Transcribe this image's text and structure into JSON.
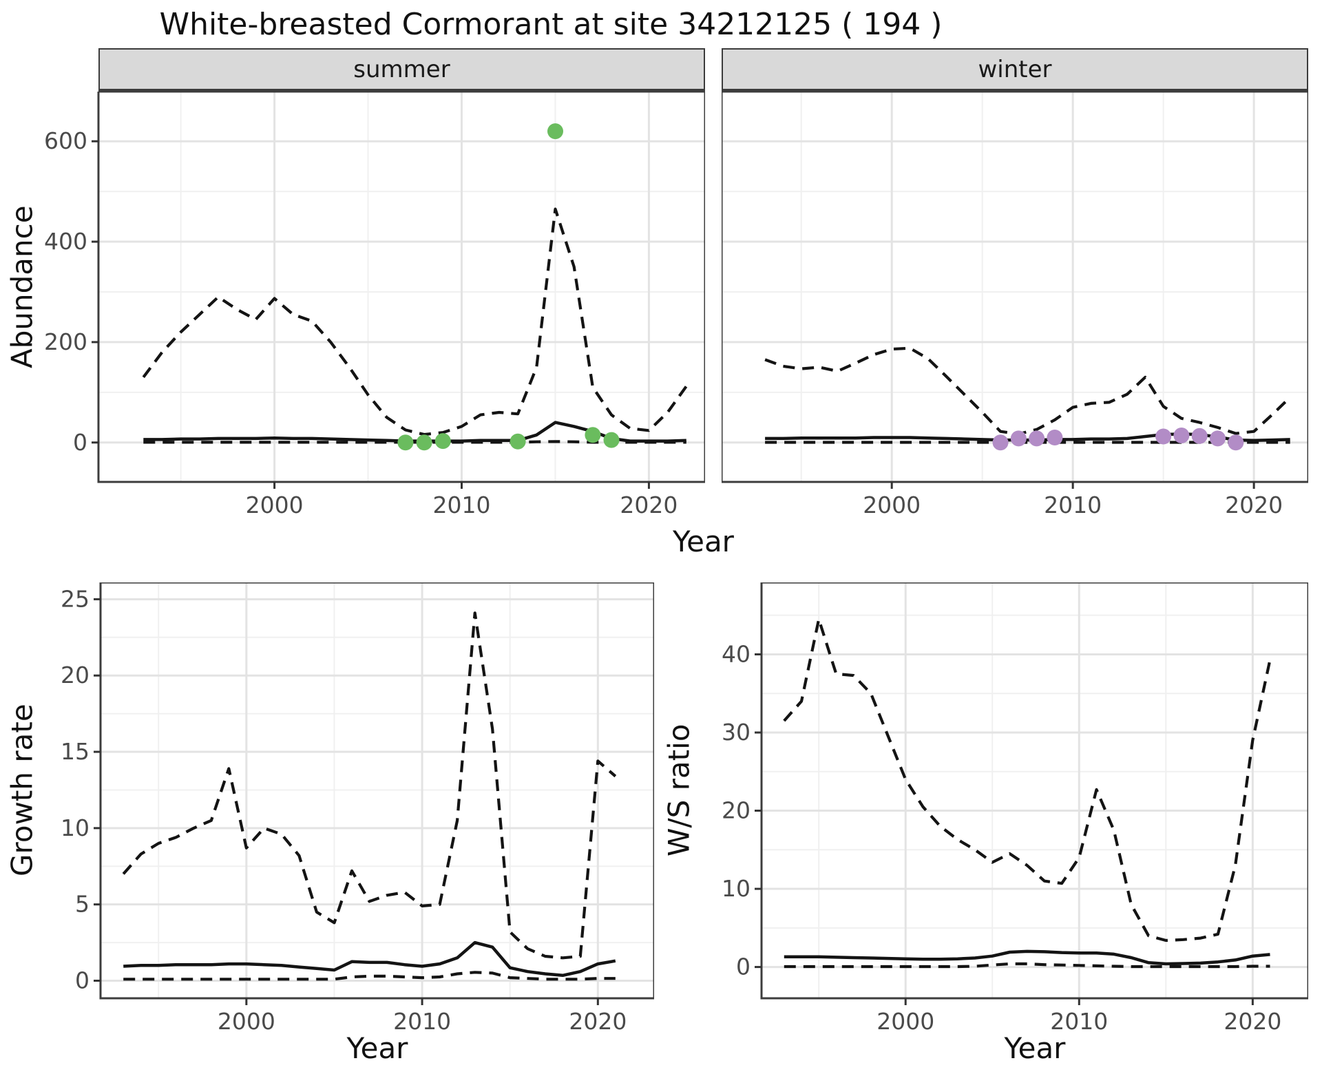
{
  "title": "White-breasted Cormorant at site 34212125 ( 194 )",
  "colors": {
    "line": "#141414",
    "grid_major": "#e3e3e3",
    "grid_minor": "#f0f0f0",
    "panel_border": "#3c3c3c",
    "panel_bg": "#ffffff",
    "strip_bg": "#d9d9d9",
    "tick_text": "#4a4a4a",
    "tick_mark": "#333333",
    "text": "#111111",
    "summer_points": "#6abc5e",
    "winter_points": "#b28cc6"
  },
  "chart_data": [
    {
      "id": "abundance-summer",
      "type": "line",
      "facet_label": "summer",
      "ylabel": "Abundance",
      "xlabel": "Year",
      "xlim": [
        1990.6,
        2023.0
      ],
      "ylim": [
        -78.5,
        699
      ],
      "x_ticks": [
        2000,
        2010,
        2020
      ],
      "x_minor": [
        1995,
        2005,
        2015
      ],
      "y_ticks": [
        0,
        200,
        400,
        600
      ],
      "y_minor": [
        100,
        300,
        500
      ],
      "y_labels": true,
      "years": [
        1993,
        1994,
        1995,
        1996,
        1997,
        1998,
        1999,
        2000,
        2001,
        2002,
        2003,
        2004,
        2005,
        2006,
        2007,
        2008,
        2009,
        2010,
        2011,
        2012,
        2013,
        2014,
        2015,
        2016,
        2017,
        2018,
        2019,
        2020,
        2021,
        2022
      ],
      "series": [
        {
          "name": "upper-ci",
          "style": "dashed",
          "values": [
            130,
            180,
            220,
            255,
            290,
            265,
            245,
            287,
            255,
            242,
            200,
            150,
            95,
            50,
            25,
            16,
            20,
            32,
            55,
            60,
            57,
            150,
            465,
            350,
            110,
            55,
            28,
            24,
            60,
            112
          ]
        },
        {
          "name": "median",
          "style": "solid",
          "values": [
            6,
            6,
            7,
            7,
            8,
            8,
            8,
            9,
            8,
            8,
            7,
            6,
            5,
            4,
            3,
            3,
            3,
            3,
            4,
            4,
            4,
            15,
            40,
            32,
            22,
            8,
            3,
            3,
            3,
            4
          ]
        },
        {
          "name": "lower-ci",
          "style": "dashed",
          "values": [
            0.5,
            0.5,
            0.5,
            0.5,
            0.5,
            0.5,
            0.5,
            0.5,
            0.5,
            0.5,
            0.5,
            0.5,
            0.5,
            0.5,
            0.5,
            0.5,
            0.5,
            0.5,
            0.5,
            0.5,
            0.5,
            1.5,
            2,
            1.5,
            0.5,
            0.5,
            0.5,
            0.5,
            0.5,
            0.5
          ]
        }
      ],
      "points": {
        "name": "observed-counts-summer",
        "color": "#6abc5e",
        "x": [
          2007,
          2008,
          2009,
          2013,
          2015,
          2017,
          2018
        ],
        "y": [
          0,
          0,
          3,
          2,
          620,
          15,
          5
        ]
      }
    },
    {
      "id": "abundance-winter",
      "type": "line",
      "facet_label": "winter",
      "ylabel": null,
      "xlabel": "Year",
      "xlim": [
        1990.6,
        2023.0
      ],
      "ylim": [
        -78.5,
        699
      ],
      "x_ticks": [
        2000,
        2010,
        2020
      ],
      "x_minor": [
        1995,
        2005,
        2015
      ],
      "y_ticks": [
        0,
        200,
        400,
        600
      ],
      "y_minor": [
        100,
        300,
        500
      ],
      "y_labels": false,
      "years": [
        1993,
        1994,
        1995,
        1996,
        1997,
        1998,
        1999,
        2000,
        2001,
        2002,
        2003,
        2004,
        2005,
        2006,
        2007,
        2008,
        2009,
        2010,
        2011,
        2012,
        2013,
        2014,
        2015,
        2016,
        2017,
        2018,
        2019,
        2020,
        2021,
        2022
      ],
      "series": [
        {
          "name": "upper-ci",
          "style": "dashed",
          "values": [
            165,
            152,
            147,
            150,
            142,
            158,
            175,
            186,
            188,
            167,
            132,
            96,
            60,
            22,
            17,
            26,
            45,
            70,
            78,
            80,
            96,
            130,
            72,
            48,
            40,
            30,
            18,
            22,
            55,
            90
          ]
        },
        {
          "name": "median",
          "style": "solid",
          "values": [
            8,
            8,
            9,
            9,
            9,
            9,
            10,
            10,
            10,
            9,
            8,
            7,
            6,
            5,
            5,
            5,
            6,
            6,
            7,
            7,
            8,
            12,
            16,
            17,
            16,
            11,
            5,
            4,
            5,
            6
          ]
        },
        {
          "name": "lower-ci",
          "style": "dashed",
          "values": [
            0.3,
            0.3,
            0.3,
            0.3,
            0.3,
            0.3,
            0.3,
            0.3,
            0.3,
            0.3,
            0.3,
            0.3,
            0.3,
            0.3,
            0.3,
            0.3,
            0.3,
            0.3,
            0.3,
            0.3,
            0.3,
            0.3,
            0.3,
            0.3,
            0.3,
            0.3,
            0.3,
            0.3,
            0.3,
            0.3
          ]
        }
      ],
      "points": {
        "name": "observed-counts-winter",
        "color": "#b28cc6",
        "x": [
          2006,
          2007,
          2008,
          2009,
          2015,
          2016,
          2017,
          2018,
          2019
        ],
        "y": [
          0,
          8,
          8,
          10,
          12,
          14,
          13,
          8,
          0
        ]
      }
    },
    {
      "id": "growth",
      "type": "line",
      "facet_label": null,
      "ylabel": "Growth rate",
      "xlabel": "Year",
      "xlim": [
        1991.7,
        2023.2
      ],
      "ylim": [
        -1.15,
        26.1
      ],
      "x_ticks": [
        2000,
        2010,
        2020
      ],
      "x_minor": [
        1995,
        2005,
        2015
      ],
      "y_ticks": [
        0,
        5,
        10,
        15,
        20,
        25
      ],
      "y_minor": [
        2.5,
        7.5,
        12.5,
        17.5,
        22.5
      ],
      "y_labels": true,
      "years": [
        1993,
        1994,
        1995,
        1996,
        1997,
        1998,
        1999,
        2000,
        2001,
        2002,
        2003,
        2004,
        2005,
        2006,
        2007,
        2008,
        2009,
        2010,
        2011,
        2012,
        2013,
        2014,
        2015,
        2016,
        2017,
        2018,
        2019,
        2020,
        2021
      ],
      "series": [
        {
          "name": "upper-ci",
          "style": "dashed",
          "values": [
            7.0,
            8.3,
            9.0,
            9.4,
            10.0,
            10.5,
            13.9,
            8.7,
            10.0,
            9.6,
            8.2,
            4.5,
            3.8,
            7.2,
            5.2,
            5.6,
            5.8,
            4.9,
            5.0,
            10.5,
            24.1,
            16.5,
            3.2,
            2.1,
            1.6,
            1.5,
            1.6,
            14.4,
            13.4
          ]
        },
        {
          "name": "median",
          "style": "solid",
          "values": [
            0.95,
            1.0,
            1.0,
            1.05,
            1.05,
            1.05,
            1.1,
            1.1,
            1.05,
            1.0,
            0.9,
            0.8,
            0.7,
            1.25,
            1.2,
            1.2,
            1.05,
            0.95,
            1.1,
            1.5,
            2.5,
            2.2,
            0.85,
            0.6,
            0.45,
            0.35,
            0.6,
            1.1,
            1.3
          ]
        },
        {
          "name": "lower-ci",
          "style": "dashed",
          "values": [
            0.1,
            0.1,
            0.1,
            0.1,
            0.1,
            0.1,
            0.1,
            0.1,
            0.1,
            0.1,
            0.1,
            0.1,
            0.1,
            0.25,
            0.3,
            0.3,
            0.25,
            0.2,
            0.25,
            0.45,
            0.55,
            0.5,
            0.2,
            0.15,
            0.1,
            0.1,
            0.1,
            0.15,
            0.15
          ]
        }
      ],
      "points": null
    },
    {
      "id": "ws",
      "type": "line",
      "facet_label": null,
      "ylabel": "W/S ratio",
      "xlabel": "Year",
      "xlim": [
        1991.7,
        2023.2
      ],
      "ylim": [
        -4.0,
        49.2
      ],
      "x_ticks": [
        2000,
        2010,
        2020
      ],
      "x_minor": [
        1995,
        2005,
        2015
      ],
      "y_ticks": [
        0,
        10,
        20,
        30,
        40
      ],
      "y_minor": [
        5,
        15,
        25,
        35,
        45
      ],
      "y_labels": true,
      "years": [
        1993,
        1994,
        1995,
        1996,
        1997,
        1998,
        1999,
        2000,
        2001,
        2002,
        2003,
        2004,
        2005,
        2006,
        2007,
        2008,
        2009,
        2010,
        2011,
        2012,
        2013,
        2014,
        2015,
        2016,
        2017,
        2018,
        2019,
        2020,
        2021
      ],
      "series": [
        {
          "name": "upper-ci",
          "style": "dashed",
          "values": [
            31.5,
            34.0,
            44.5,
            37.5,
            37.3,
            35.0,
            29.5,
            24.0,
            20.5,
            18.0,
            16.3,
            15.0,
            13.4,
            14.5,
            13.0,
            11.0,
            10.7,
            14.0,
            22.7,
            17.5,
            8.0,
            4.0,
            3.4,
            3.5,
            3.7,
            4.2,
            13.0,
            29.0,
            39.3
          ]
        },
        {
          "name": "median",
          "style": "solid",
          "values": [
            1.3,
            1.3,
            1.3,
            1.25,
            1.2,
            1.15,
            1.1,
            1.05,
            1.0,
            1.0,
            1.05,
            1.15,
            1.4,
            1.9,
            2.0,
            1.95,
            1.85,
            1.8,
            1.8,
            1.65,
            1.2,
            0.55,
            0.4,
            0.45,
            0.5,
            0.65,
            0.9,
            1.4,
            1.6
          ]
        },
        {
          "name": "lower-ci",
          "style": "dashed",
          "values": [
            0.05,
            0.05,
            0.05,
            0.05,
            0.05,
            0.05,
            0.05,
            0.05,
            0.05,
            0.05,
            0.05,
            0.1,
            0.25,
            0.4,
            0.4,
            0.3,
            0.25,
            0.2,
            0.15,
            0.1,
            0.05,
            0.05,
            0.05,
            0.05,
            0.05,
            0.05,
            0.05,
            0.1,
            0.1
          ]
        }
      ],
      "points": null
    }
  ]
}
